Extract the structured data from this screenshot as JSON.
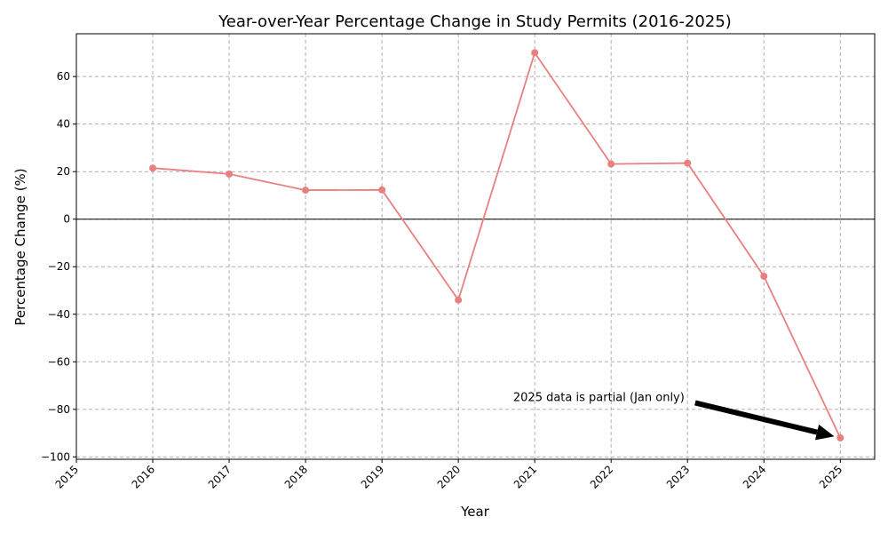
{
  "chart_data": {
    "type": "line",
    "title": "Year-over-Year Percentage Change in Study Permits (2016-2025)",
    "xlabel": "Year",
    "ylabel": "Percentage Change (%)",
    "x": [
      2016,
      2017,
      2018,
      2019,
      2020,
      2021,
      2022,
      2023,
      2024,
      2025
    ],
    "x_ticks": [
      "2015",
      "2016",
      "2017",
      "2018",
      "2019",
      "2020",
      "2021",
      "2022",
      "2023",
      "2024",
      "2025"
    ],
    "y_ticks": [
      60,
      40,
      20,
      0,
      -20,
      -40,
      -60,
      -80,
      -100
    ],
    "y_tick_labels": [
      "60",
      "40",
      "20",
      "0",
      "−20",
      "−40",
      "−60",
      "−80",
      "−100"
    ],
    "series": [
      {
        "values": [
          21.5,
          19.0,
          12.2,
          12.3,
          -34.0,
          70.0,
          23.2,
          23.6,
          -24.0,
          -92.0
        ],
        "color": "#e88080"
      }
    ],
    "xlim": [
      2015,
      2025.45
    ],
    "ylim": [
      -101,
      78
    ],
    "grid": true,
    "zero_line": true,
    "annotation": {
      "text": "2025 data is partial (Jan only)",
      "x": 2025,
      "y": -92.0,
      "text_x": 2023.1,
      "text_y": -75
    }
  }
}
